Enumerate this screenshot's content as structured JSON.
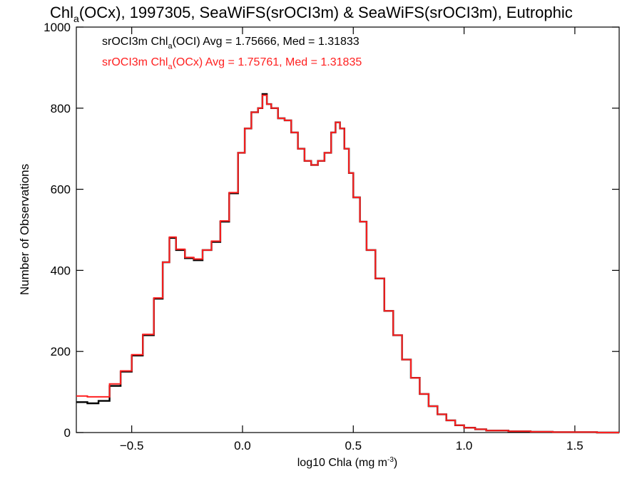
{
  "chart_data": {
    "type": "line",
    "title": {
      "prefix": "Chl",
      "subscript": "a",
      "suffix": "(OCx), 1997305, SeaWiFS(srOCI3m) & SeaWiFS(srOCI3m), Eutrophic"
    },
    "xlabel": {
      "main": "log10 Chla (mg m",
      "superscript": "-3",
      "end": ")"
    },
    "ylabel": "Number of Observations",
    "xlim": [
      -0.75,
      1.7
    ],
    "ylim": [
      0,
      1000
    ],
    "xticks": [
      {
        "value": -0.5,
        "label": "−0.5"
      },
      {
        "value": 0.0,
        "label": "0.0"
      },
      {
        "value": 0.5,
        "label": "0.5"
      },
      {
        "value": 1.0,
        "label": "1.0"
      },
      {
        "value": 1.5,
        "label": "1.5"
      }
    ],
    "yticks": [
      {
        "value": 0,
        "label": "0"
      },
      {
        "value": 200,
        "label": "200"
      },
      {
        "value": 400,
        "label": "400"
      },
      {
        "value": 600,
        "label": "600"
      },
      {
        "value": 800,
        "label": "800"
      },
      {
        "value": 1000,
        "label": "1000"
      }
    ],
    "legend": {
      "placement": "top-left",
      "entries": [
        {
          "prefix": "srOCI3m Chl",
          "subscript": "a",
          "suffix": "(OCI) Avg = 1.75666, Med = 1.31833",
          "color": "#000000"
        },
        {
          "prefix": "srOCI3m Chl",
          "subscript": "a",
          "suffix": "(OCx) Avg = 1.75761, Med = 1.31835",
          "color": "#ff2020"
        }
      ]
    },
    "series": [
      {
        "name": "srOCI3m Chla(OCI)",
        "color": "#000000",
        "points": [
          [
            -0.75,
            75
          ],
          [
            -0.7,
            72
          ],
          [
            -0.65,
            78
          ],
          [
            -0.6,
            115
          ],
          [
            -0.55,
            150
          ],
          [
            -0.5,
            190
          ],
          [
            -0.45,
            240
          ],
          [
            -0.4,
            330
          ],
          [
            -0.36,
            420
          ],
          [
            -0.33,
            480
          ],
          [
            -0.3,
            450
          ],
          [
            -0.26,
            430
          ],
          [
            -0.22,
            425
          ],
          [
            -0.18,
            450
          ],
          [
            -0.14,
            470
          ],
          [
            -0.1,
            520
          ],
          [
            -0.06,
            590
          ],
          [
            -0.02,
            690
          ],
          [
            0.01,
            750
          ],
          [
            0.04,
            790
          ],
          [
            0.07,
            800
          ],
          [
            0.09,
            835
          ],
          [
            0.11,
            810
          ],
          [
            0.13,
            800
          ],
          [
            0.16,
            775
          ],
          [
            0.19,
            770
          ],
          [
            0.22,
            740
          ],
          [
            0.25,
            700
          ],
          [
            0.28,
            670
          ],
          [
            0.31,
            660
          ],
          [
            0.34,
            670
          ],
          [
            0.37,
            690
          ],
          [
            0.4,
            740
          ],
          [
            0.42,
            765
          ],
          [
            0.44,
            750
          ],
          [
            0.46,
            700
          ],
          [
            0.48,
            640
          ],
          [
            0.5,
            580
          ],
          [
            0.53,
            520
          ],
          [
            0.56,
            450
          ],
          [
            0.6,
            380
          ],
          [
            0.64,
            300
          ],
          [
            0.68,
            240
          ],
          [
            0.72,
            180
          ],
          [
            0.76,
            135
          ],
          [
            0.8,
            95
          ],
          [
            0.84,
            65
          ],
          [
            0.88,
            45
          ],
          [
            0.92,
            30
          ],
          [
            0.96,
            18
          ],
          [
            1.0,
            12
          ],
          [
            1.05,
            8
          ],
          [
            1.1,
            5
          ],
          [
            1.2,
            3
          ],
          [
            1.3,
            2
          ],
          [
            1.4,
            1
          ],
          [
            1.5,
            1
          ],
          [
            1.6,
            0
          ],
          [
            1.7,
            0
          ]
        ]
      },
      {
        "name": "srOCI3m Chla(OCx)",
        "color": "#ff2020",
        "points": [
          [
            -0.75,
            90
          ],
          [
            -0.7,
            88
          ],
          [
            -0.65,
            88
          ],
          [
            -0.6,
            120
          ],
          [
            -0.55,
            152
          ],
          [
            -0.5,
            192
          ],
          [
            -0.45,
            242
          ],
          [
            -0.4,
            332
          ],
          [
            -0.36,
            420
          ],
          [
            -0.33,
            482
          ],
          [
            -0.3,
            452
          ],
          [
            -0.26,
            432
          ],
          [
            -0.22,
            428
          ],
          [
            -0.18,
            450
          ],
          [
            -0.14,
            472
          ],
          [
            -0.1,
            522
          ],
          [
            -0.06,
            592
          ],
          [
            -0.02,
            690
          ],
          [
            0.01,
            750
          ],
          [
            0.04,
            790
          ],
          [
            0.07,
            800
          ],
          [
            0.09,
            832
          ],
          [
            0.11,
            810
          ],
          [
            0.13,
            800
          ],
          [
            0.16,
            775
          ],
          [
            0.19,
            770
          ],
          [
            0.22,
            740
          ],
          [
            0.25,
            700
          ],
          [
            0.28,
            670
          ],
          [
            0.31,
            660
          ],
          [
            0.34,
            670
          ],
          [
            0.37,
            690
          ],
          [
            0.4,
            740
          ],
          [
            0.42,
            765
          ],
          [
            0.44,
            750
          ],
          [
            0.46,
            700
          ],
          [
            0.48,
            640
          ],
          [
            0.5,
            580
          ],
          [
            0.53,
            520
          ],
          [
            0.56,
            450
          ],
          [
            0.6,
            380
          ],
          [
            0.64,
            300
          ],
          [
            0.68,
            240
          ],
          [
            0.72,
            180
          ],
          [
            0.76,
            135
          ],
          [
            0.8,
            95
          ],
          [
            0.84,
            65
          ],
          [
            0.88,
            45
          ],
          [
            0.92,
            30
          ],
          [
            0.96,
            18
          ],
          [
            1.0,
            12
          ],
          [
            1.05,
            8
          ],
          [
            1.1,
            5
          ],
          [
            1.2,
            3
          ],
          [
            1.3,
            2
          ],
          [
            1.4,
            1
          ],
          [
            1.5,
            1
          ],
          [
            1.6,
            0
          ],
          [
            1.7,
            0
          ]
        ]
      }
    ]
  }
}
